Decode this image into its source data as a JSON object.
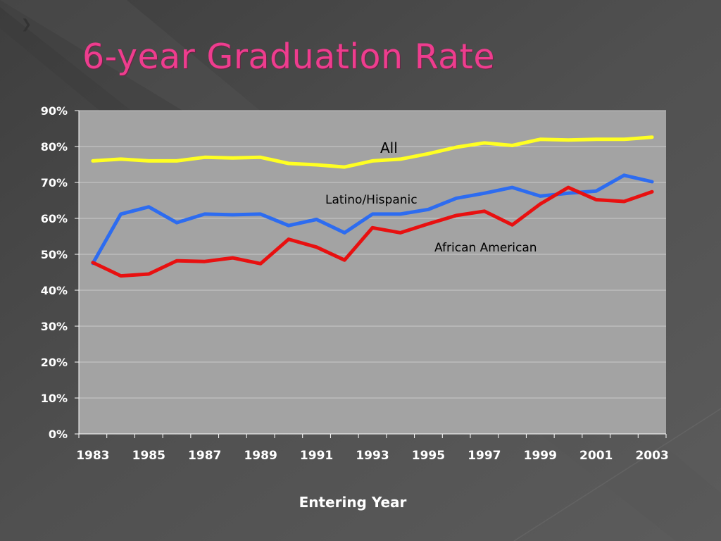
{
  "slide": {
    "title": "6-year Graduation Rate",
    "bullet_icon": "chevron-right-icon"
  },
  "chart_data": {
    "type": "line",
    "title": "",
    "xlabel": "Entering Year",
    "ylabel": "",
    "ylim": [
      0,
      0.9
    ],
    "y_ticks": [
      "0%",
      "10%",
      "20%",
      "30%",
      "40%",
      "50%",
      "60%",
      "70%",
      "80%",
      "90%"
    ],
    "x_ticks": [
      "1983",
      "1985",
      "1987",
      "1989",
      "1991",
      "1993",
      "1995",
      "1997",
      "1999",
      "2001",
      "2003"
    ],
    "x": [
      1983,
      1984,
      1985,
      1986,
      1987,
      1988,
      1989,
      1990,
      1991,
      1992,
      1993,
      1994,
      1995,
      1996,
      1997,
      1998,
      1999,
      2000,
      2001,
      2002,
      2003
    ],
    "grid": true,
    "legend": "none",
    "series": [
      {
        "name": "All",
        "color": "#ffff22",
        "values": [
          0.76,
          0.765,
          0.76,
          0.76,
          0.77,
          0.768,
          0.77,
          0.753,
          0.749,
          0.743,
          0.76,
          0.765,
          0.78,
          0.798,
          0.81,
          0.803,
          0.82,
          0.818,
          0.82,
          0.82,
          0.826
        ]
      },
      {
        "name": "Latino/Hispanic",
        "color": "#2d6cf0",
        "values": [
          0.475,
          0.612,
          0.632,
          0.588,
          0.612,
          0.61,
          0.612,
          0.58,
          0.597,
          0.56,
          0.612,
          0.612,
          0.625,
          0.656,
          0.67,
          0.686,
          0.662,
          0.67,
          0.676,
          0.72,
          0.702
        ]
      },
      {
        "name": "African American",
        "color": "#e81010",
        "values": [
          0.477,
          0.44,
          0.445,
          0.482,
          0.48,
          0.49,
          0.474,
          0.542,
          0.52,
          0.484,
          0.574,
          0.56,
          0.585,
          0.608,
          0.62,
          0.582,
          0.64,
          0.686,
          0.652,
          0.647,
          0.674
        ]
      }
    ],
    "annotations": [
      {
        "text": "All",
        "series": 0
      },
      {
        "text": "Latino/Hispanic",
        "series": 1
      },
      {
        "text": "African American",
        "series": 2
      }
    ],
    "colors": {
      "plot_bg": "#a3a3a3",
      "grid": "#c8c8c8",
      "tick_text": "#ffffff"
    }
  }
}
